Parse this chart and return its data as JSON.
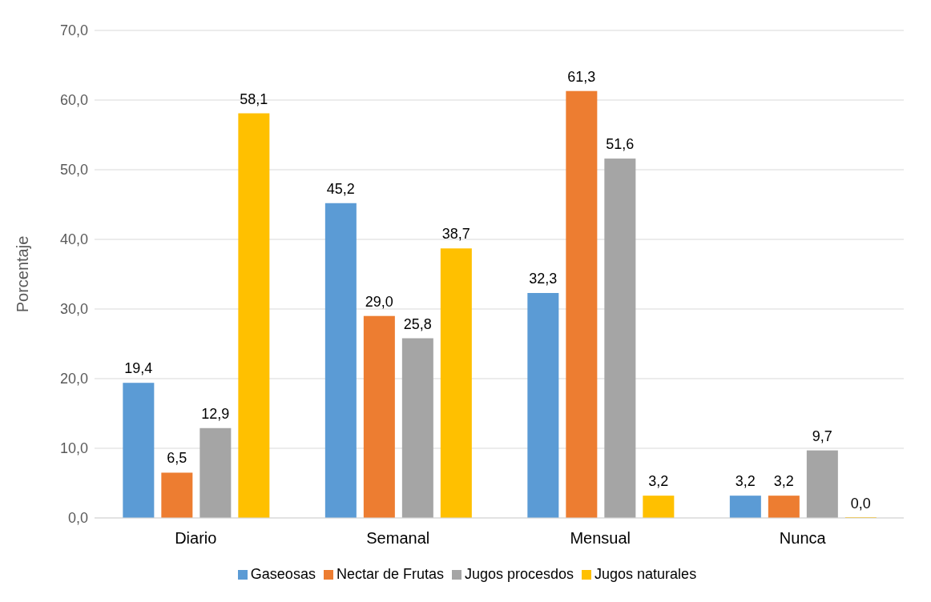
{
  "chart_data": {
    "type": "bar",
    "ylabel": "Porcentaje",
    "categories": [
      "Diario",
      "Semanal",
      "Mensual",
      "Nunca"
    ],
    "series": [
      {
        "name": "Gaseosas",
        "color": "#5b9bd5",
        "values": [
          19.4,
          45.2,
          32.3,
          3.2
        ],
        "value_labels": [
          "19,4",
          "45,2",
          "32,3",
          "3,2"
        ]
      },
      {
        "name": "Nectar de Frutas",
        "color": "#ed7d31",
        "values": [
          6.5,
          29.0,
          61.3,
          3.2
        ],
        "value_labels": [
          "6,5",
          "29,0",
          "61,3",
          "3,2"
        ]
      },
      {
        "name": "Jugos procesdos",
        "color": "#a5a5a5",
        "values": [
          12.9,
          25.8,
          51.6,
          9.7
        ],
        "value_labels": [
          "12,9",
          "25,8",
          "51,6",
          "9,7"
        ]
      },
      {
        "name": "Jugos naturales",
        "color": "#ffc000",
        "values": [
          58.1,
          38.7,
          3.2,
          0.0
        ],
        "value_labels": [
          "58,1",
          "38,7",
          "3,2",
          "0,0"
        ]
      }
    ],
    "ylim": [
      0,
      70
    ],
    "yticks": [
      {
        "value": 0,
        "label": "0,0"
      },
      {
        "value": 10,
        "label": "10,0"
      },
      {
        "value": 20,
        "label": "20,0"
      },
      {
        "value": 30,
        "label": "30,0"
      },
      {
        "value": 40,
        "label": "40,0"
      },
      {
        "value": 50,
        "label": "50,0"
      },
      {
        "value": 60,
        "label": "60,0"
      },
      {
        "value": 70,
        "label": "70,0"
      }
    ],
    "grid": "y",
    "legend": "bottom"
  }
}
